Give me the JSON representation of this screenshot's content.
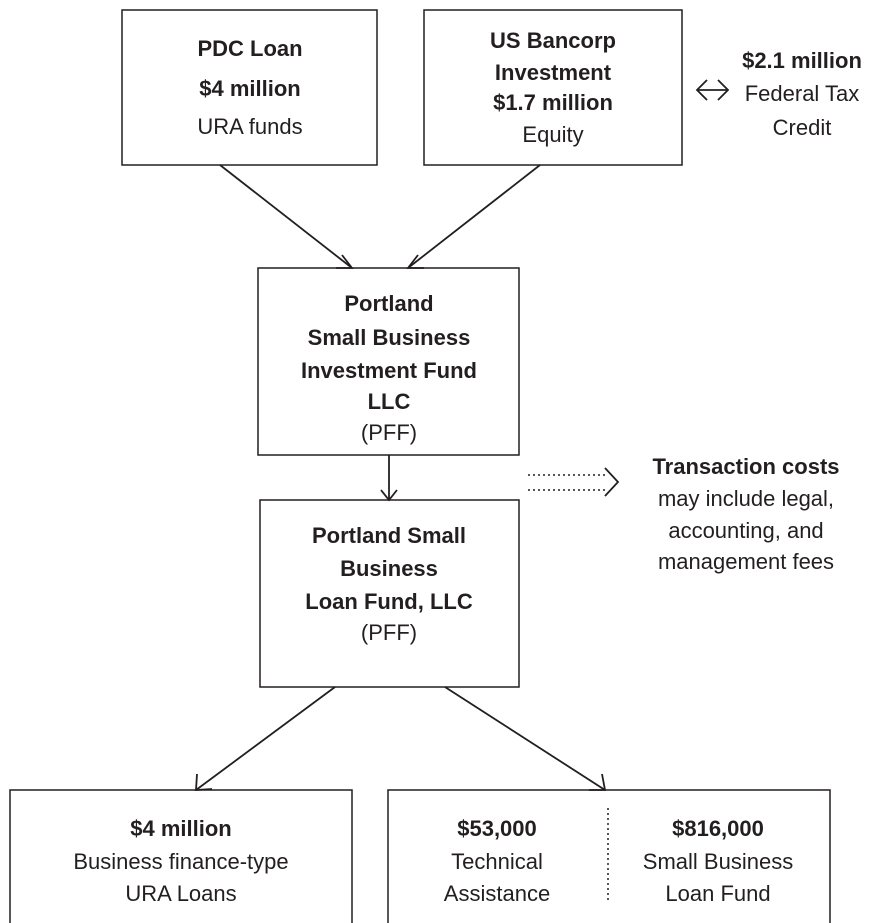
{
  "nodes": [
    {
      "lines": [
        "PDC Loan",
        "$4 million",
        "URA funds"
      ]
    },
    {
      "lines": [
        "US Bancorp",
        "Investment",
        "$1.7 million",
        "Equity"
      ]
    },
    {
      "lines": [
        "Portland",
        "Small Business",
        "Investment Fund",
        "LLC",
        "(PFF)"
      ]
    },
    {
      "lines": [
        "Portland Small",
        "Business",
        "Loan Fund, LLC",
        "(PFF)"
      ]
    },
    {
      "lines": [
        "$4 million",
        "Business finance-type",
        "URA Loans"
      ]
    },
    {
      "columns": [
        {
          "lines": [
            "$53,000",
            "Technical",
            "Assistance"
          ]
        },
        {
          "lines": [
            "$816,000",
            "Small Business",
            "Loan Fund"
          ]
        }
      ]
    }
  ],
  "notes": [
    {
      "lines": [
        "$2.1 million",
        "Federal Tax",
        "Credit"
      ]
    },
    {
      "lines": [
        "Transaction costs",
        "may include legal,",
        "accounting, and",
        "management fees"
      ]
    }
  ]
}
